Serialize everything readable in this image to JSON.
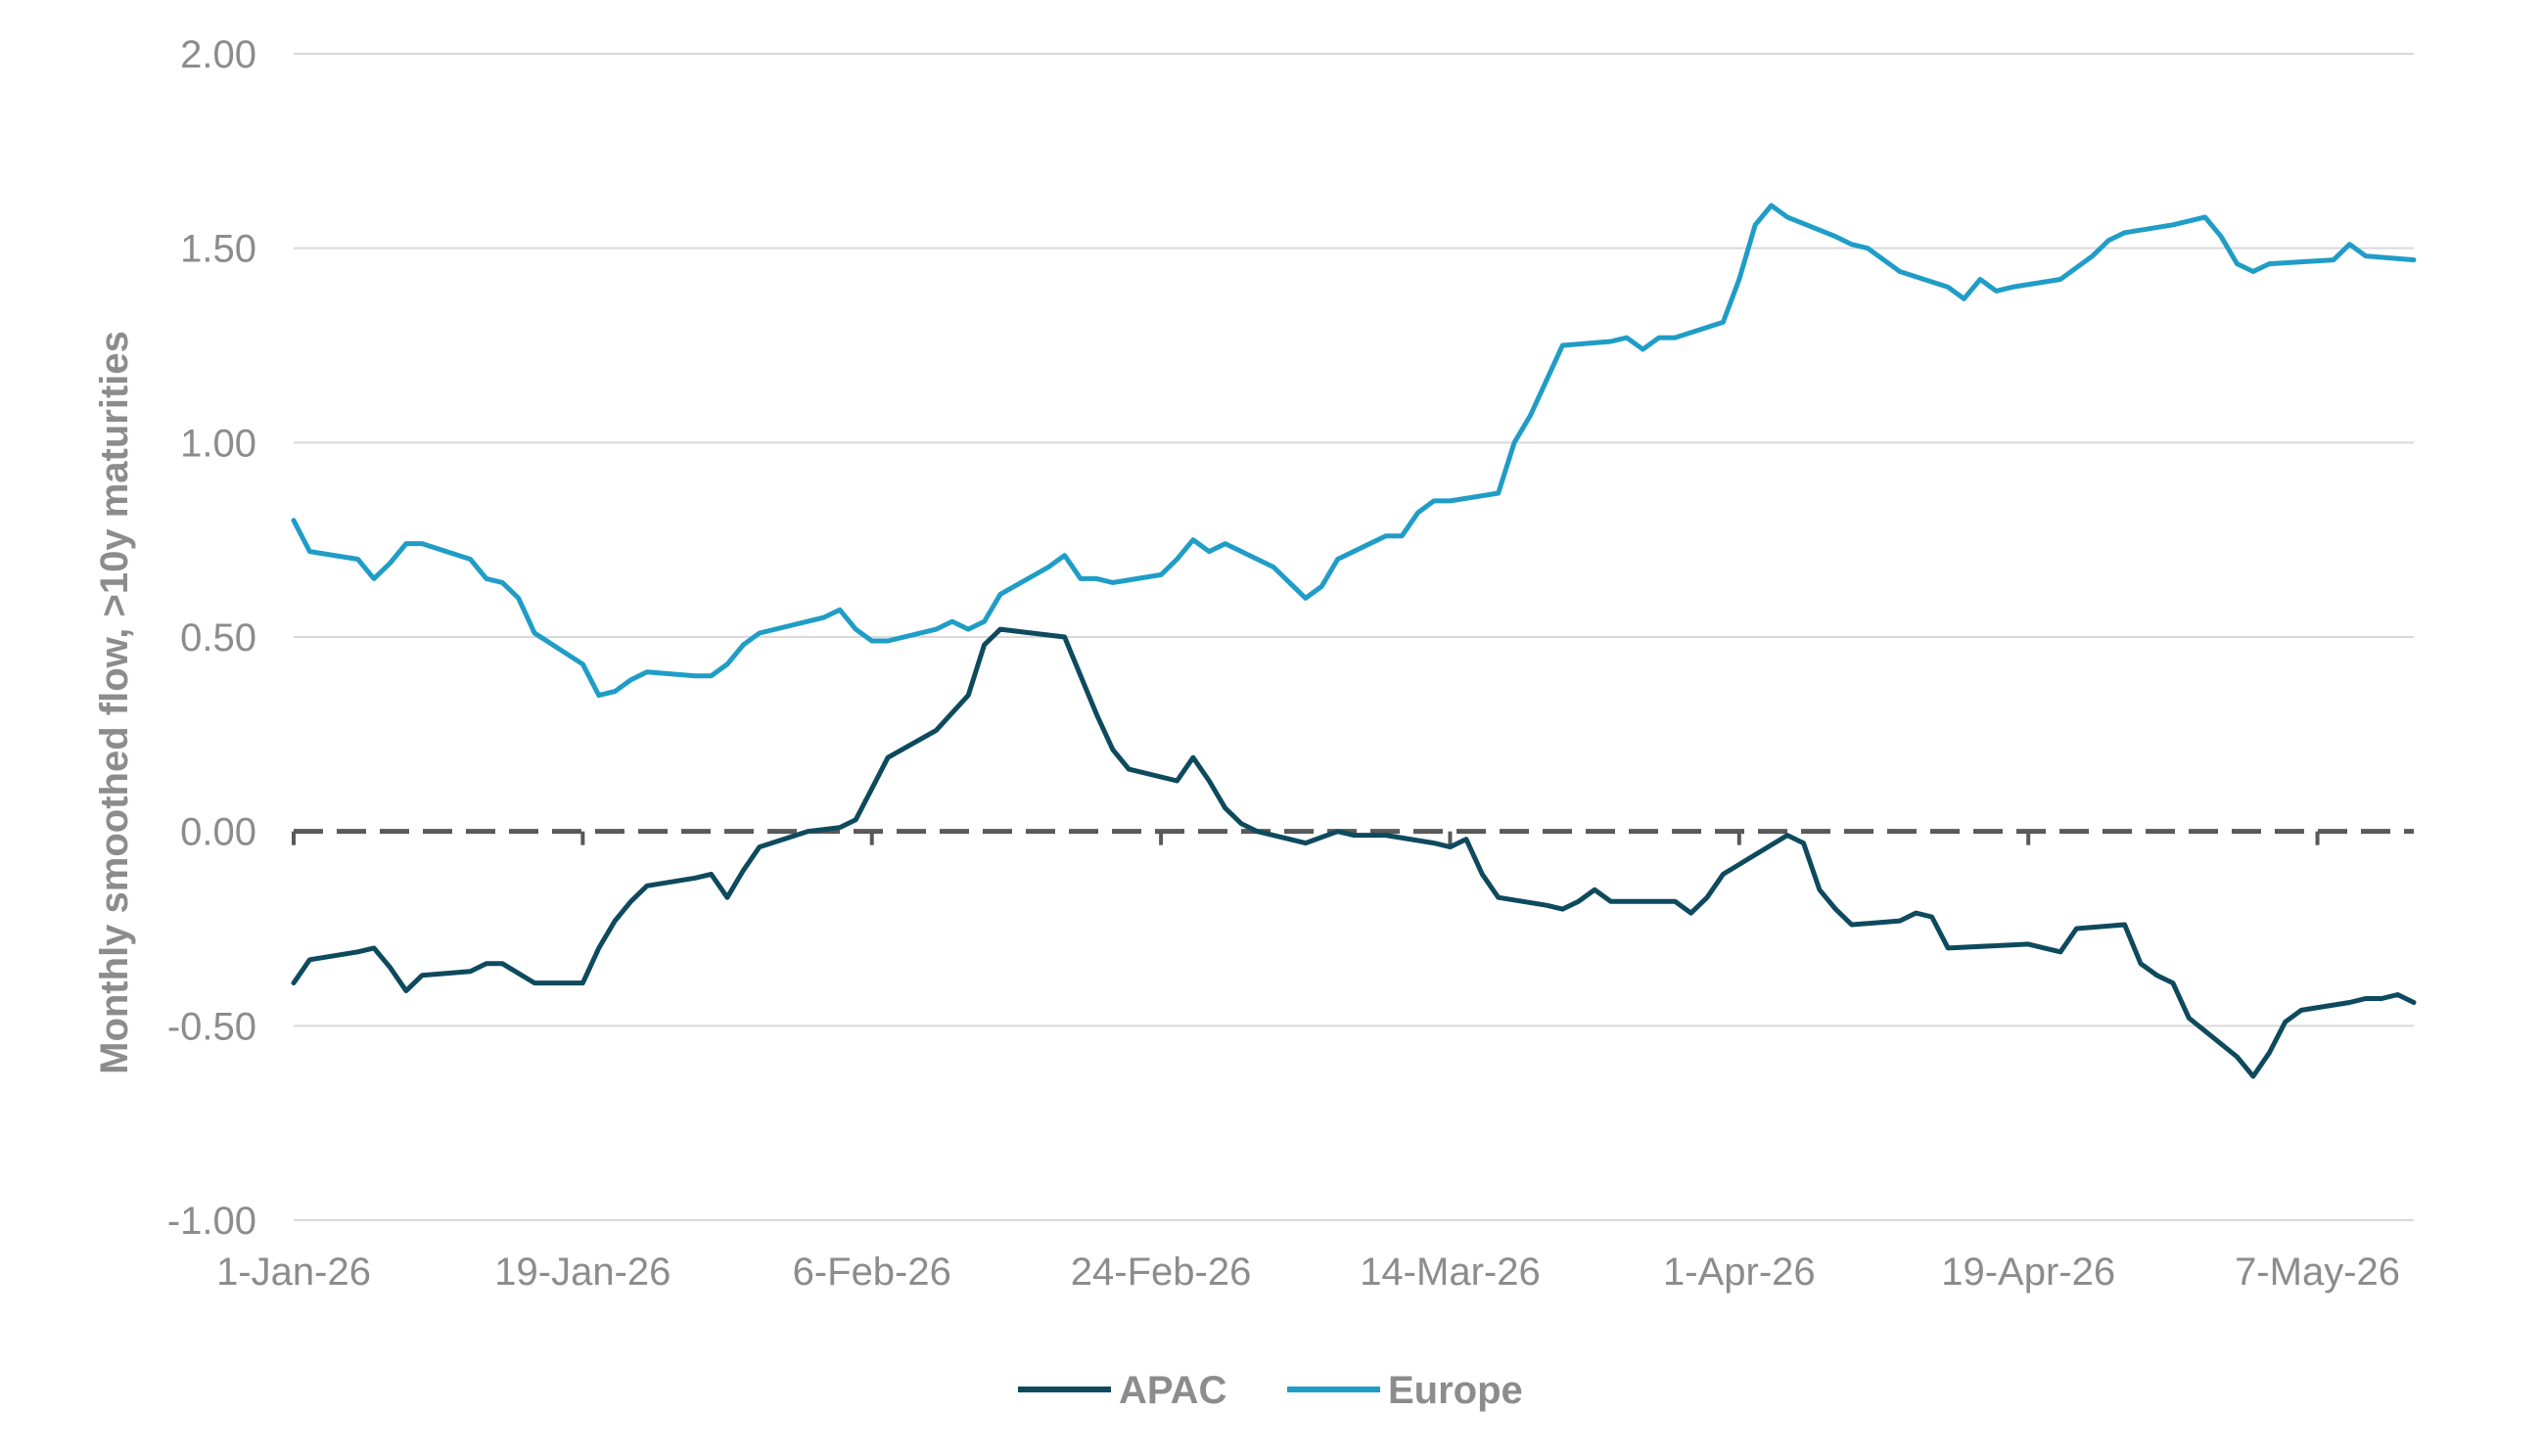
{
  "colors": {
    "APAC": "#0e4a5e",
    "Europe": "#1f9dc7",
    "grid": "#d9d9d9",
    "zero_line": "#595959",
    "text": "#8c8c8c"
  },
  "chart_data": {
    "type": "line",
    "title": "",
    "xlabel": "",
    "ylabel": "Monthly smoothed flow, >10y maturities",
    "ylim": [
      -1.0,
      2.0
    ],
    "y_ticks": [
      "2.00",
      "1.50",
      "1.00",
      "0.50",
      "0.00",
      "-0.50",
      "-1.00"
    ],
    "x_ticks": [
      "1-Jan-26",
      "19-Jan-26",
      "6-Feb-26",
      "24-Feb-26",
      "14-Mar-26",
      "1-Apr-26",
      "19-Apr-26",
      "7-May-26"
    ],
    "grid": "horizontal",
    "zero_line": "dashed",
    "legend": "bottom-center",
    "series": [
      {
        "name": "APAC",
        "points": [
          [
            "2026-01-01",
            -0.39
          ],
          [
            "2026-01-02",
            -0.33
          ],
          [
            "2026-01-05",
            -0.31
          ],
          [
            "2026-01-06",
            -0.3
          ],
          [
            "2026-01-07",
            -0.35
          ],
          [
            "2026-01-08",
            -0.41
          ],
          [
            "2026-01-09",
            -0.37
          ],
          [
            "2026-01-12",
            -0.36
          ],
          [
            "2026-01-13",
            -0.34
          ],
          [
            "2026-01-14",
            -0.34
          ],
          [
            "2026-01-16",
            -0.39
          ],
          [
            "2026-01-19",
            -0.39
          ],
          [
            "2026-01-20",
            -0.3
          ],
          [
            "2026-01-21",
            -0.23
          ],
          [
            "2026-01-22",
            -0.18
          ],
          [
            "2026-01-23",
            -0.14
          ],
          [
            "2026-01-26",
            -0.12
          ],
          [
            "2026-01-27",
            -0.11
          ],
          [
            "2026-01-28",
            -0.17
          ],
          [
            "2026-01-29",
            -0.1
          ],
          [
            "2026-01-30",
            -0.04
          ],
          [
            "2026-02-02",
            0.0
          ],
          [
            "2026-02-04",
            0.01
          ],
          [
            "2026-02-05",
            0.03
          ],
          [
            "2026-02-06",
            0.11
          ],
          [
            "2026-02-07",
            0.19
          ],
          [
            "2026-02-10",
            0.26
          ],
          [
            "2026-02-12",
            0.35
          ],
          [
            "2026-02-13",
            0.48
          ],
          [
            "2026-02-14",
            0.52
          ],
          [
            "2026-02-18",
            0.5
          ],
          [
            "2026-02-19",
            0.4
          ],
          [
            "2026-02-20",
            0.3
          ],
          [
            "2026-02-21",
            0.21
          ],
          [
            "2026-02-22",
            0.16
          ],
          [
            "2026-02-25",
            0.13
          ],
          [
            "2026-02-26",
            0.19
          ],
          [
            "2026-02-27",
            0.13
          ],
          [
            "2026-02-28",
            0.06
          ],
          [
            "2026-03-01",
            0.02
          ],
          [
            "2026-03-02",
            0.0
          ],
          [
            "2026-03-05",
            -0.03
          ],
          [
            "2026-03-07",
            0.0
          ],
          [
            "2026-03-08",
            -0.01
          ],
          [
            "2026-03-10",
            -0.01
          ],
          [
            "2026-03-13",
            -0.03
          ],
          [
            "2026-03-14",
            -0.04
          ],
          [
            "2026-03-15",
            -0.02
          ],
          [
            "2026-03-16",
            -0.11
          ],
          [
            "2026-03-17",
            -0.17
          ],
          [
            "2026-03-20",
            -0.19
          ],
          [
            "2026-03-21",
            -0.2
          ],
          [
            "2026-03-22",
            -0.18
          ],
          [
            "2026-03-23",
            -0.15
          ],
          [
            "2026-03-24",
            -0.18
          ],
          [
            "2026-03-28",
            -0.18
          ],
          [
            "2026-03-29",
            -0.21
          ],
          [
            "2026-03-30",
            -0.17
          ],
          [
            "2026-03-31",
            -0.11
          ],
          [
            "2026-04-02",
            -0.06
          ],
          [
            "2026-04-04",
            -0.01
          ],
          [
            "2026-04-05",
            -0.03
          ],
          [
            "2026-04-06",
            -0.15
          ],
          [
            "2026-04-07",
            -0.2
          ],
          [
            "2026-04-08",
            -0.24
          ],
          [
            "2026-04-11",
            -0.23
          ],
          [
            "2026-04-12",
            -0.21
          ],
          [
            "2026-04-13",
            -0.22
          ],
          [
            "2026-04-14",
            -0.3
          ],
          [
            "2026-04-19",
            -0.29
          ],
          [
            "2026-04-20",
            -0.3
          ],
          [
            "2026-04-21",
            -0.31
          ],
          [
            "2026-04-22",
            -0.25
          ],
          [
            "2026-04-25",
            -0.24
          ],
          [
            "2026-04-26",
            -0.34
          ],
          [
            "2026-04-27",
            -0.37
          ],
          [
            "2026-04-28",
            -0.39
          ],
          [
            "2026-04-29",
            -0.48
          ],
          [
            "2026-05-02",
            -0.58
          ],
          [
            "2026-05-03",
            -0.63
          ],
          [
            "2026-05-04",
            -0.57
          ],
          [
            "2026-05-05",
            -0.49
          ],
          [
            "2026-05-06",
            -0.46
          ],
          [
            "2026-05-09",
            -0.44
          ],
          [
            "2026-05-10",
            -0.43
          ],
          [
            "2026-05-11",
            -0.43
          ],
          [
            "2026-05-12",
            -0.42
          ],
          [
            "2026-05-13",
            -0.44
          ]
        ]
      },
      {
        "name": "Europe",
        "points": [
          [
            "2026-01-01",
            0.8
          ],
          [
            "2026-01-02",
            0.72
          ],
          [
            "2026-01-05",
            0.7
          ],
          [
            "2026-01-06",
            0.65
          ],
          [
            "2026-01-07",
            0.69
          ],
          [
            "2026-01-08",
            0.74
          ],
          [
            "2026-01-09",
            0.74
          ],
          [
            "2026-01-12",
            0.7
          ],
          [
            "2026-01-13",
            0.65
          ],
          [
            "2026-01-14",
            0.64
          ],
          [
            "2026-01-15",
            0.6
          ],
          [
            "2026-01-16",
            0.51
          ],
          [
            "2026-01-19",
            0.43
          ],
          [
            "2026-01-20",
            0.35
          ],
          [
            "2026-01-21",
            0.36
          ],
          [
            "2026-01-22",
            0.39
          ],
          [
            "2026-01-23",
            0.41
          ],
          [
            "2026-01-26",
            0.4
          ],
          [
            "2026-01-27",
            0.4
          ],
          [
            "2026-01-28",
            0.43
          ],
          [
            "2026-01-29",
            0.48
          ],
          [
            "2026-01-30",
            0.51
          ],
          [
            "2026-02-03",
            0.55
          ],
          [
            "2026-02-04",
            0.57
          ],
          [
            "2026-02-05",
            0.52
          ],
          [
            "2026-02-06",
            0.49
          ],
          [
            "2026-02-07",
            0.49
          ],
          [
            "2026-02-10",
            0.52
          ],
          [
            "2026-02-11",
            0.54
          ],
          [
            "2026-02-12",
            0.52
          ],
          [
            "2026-02-13",
            0.54
          ],
          [
            "2026-02-14",
            0.61
          ],
          [
            "2026-02-17",
            0.68
          ],
          [
            "2026-02-18",
            0.71
          ],
          [
            "2026-02-19",
            0.65
          ],
          [
            "2026-02-20",
            0.65
          ],
          [
            "2026-02-21",
            0.64
          ],
          [
            "2026-02-24",
            0.66
          ],
          [
            "2026-02-25",
            0.7
          ],
          [
            "2026-02-26",
            0.75
          ],
          [
            "2026-02-27",
            0.72
          ],
          [
            "2026-02-28",
            0.74
          ],
          [
            "2026-03-03",
            0.68
          ],
          [
            "2026-03-04",
            0.64
          ],
          [
            "2026-03-05",
            0.6
          ],
          [
            "2026-03-06",
            0.63
          ],
          [
            "2026-03-07",
            0.7
          ],
          [
            "2026-03-10",
            0.76
          ],
          [
            "2026-03-11",
            0.76
          ],
          [
            "2026-03-12",
            0.82
          ],
          [
            "2026-03-13",
            0.85
          ],
          [
            "2026-03-14",
            0.85
          ],
          [
            "2026-03-17",
            0.87
          ],
          [
            "2026-03-18",
            1.0
          ],
          [
            "2026-03-19",
            1.07
          ],
          [
            "2026-03-20",
            1.16
          ],
          [
            "2026-03-21",
            1.25
          ],
          [
            "2026-03-24",
            1.26
          ],
          [
            "2026-03-25",
            1.27
          ],
          [
            "2026-03-26",
            1.24
          ],
          [
            "2026-03-27",
            1.27
          ],
          [
            "2026-03-28",
            1.27
          ],
          [
            "2026-03-31",
            1.31
          ],
          [
            "2026-04-01",
            1.42
          ],
          [
            "2026-04-02",
            1.56
          ],
          [
            "2026-04-03",
            1.61
          ],
          [
            "2026-04-04",
            1.58
          ],
          [
            "2026-04-07",
            1.53
          ],
          [
            "2026-04-08",
            1.51
          ],
          [
            "2026-04-09",
            1.5
          ],
          [
            "2026-04-11",
            1.44
          ],
          [
            "2026-04-14",
            1.4
          ],
          [
            "2026-04-15",
            1.37
          ],
          [
            "2026-04-16",
            1.42
          ],
          [
            "2026-04-17",
            1.39
          ],
          [
            "2026-04-18",
            1.4
          ],
          [
            "2026-04-21",
            1.42
          ],
          [
            "2026-04-22",
            1.45
          ],
          [
            "2026-04-23",
            1.48
          ],
          [
            "2026-04-24",
            1.52
          ],
          [
            "2026-04-25",
            1.54
          ],
          [
            "2026-04-28",
            1.56
          ],
          [
            "2026-04-30",
            1.58
          ],
          [
            "2026-05-01",
            1.53
          ],
          [
            "2026-05-02",
            1.46
          ],
          [
            "2026-05-03",
            1.44
          ],
          [
            "2026-05-04",
            1.46
          ],
          [
            "2026-05-08",
            1.47
          ],
          [
            "2026-05-09",
            1.51
          ],
          [
            "2026-05-10",
            1.48
          ],
          [
            "2026-05-13",
            1.47
          ]
        ]
      }
    ]
  }
}
